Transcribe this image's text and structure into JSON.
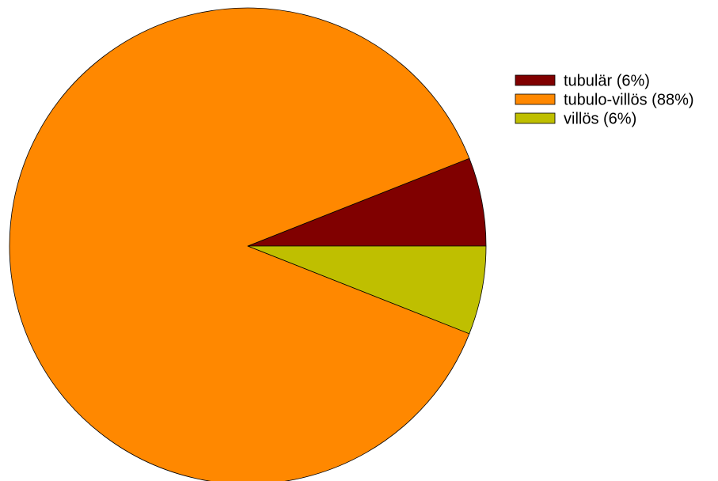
{
  "chart_data": {
    "type": "pie",
    "title": "",
    "legend_position": "top-right",
    "start_angle_deg": 0,
    "direction": "counterclockwise",
    "slices": [
      {
        "label": "tubulär (6%)",
        "value": 6,
        "color": "#800000"
      },
      {
        "label": "tubulo-villös (88%)",
        "value": 88,
        "color": "#FF8800"
      },
      {
        "label": "villös (6%)",
        "value": 6,
        "color": "#BFBF00"
      }
    ]
  }
}
